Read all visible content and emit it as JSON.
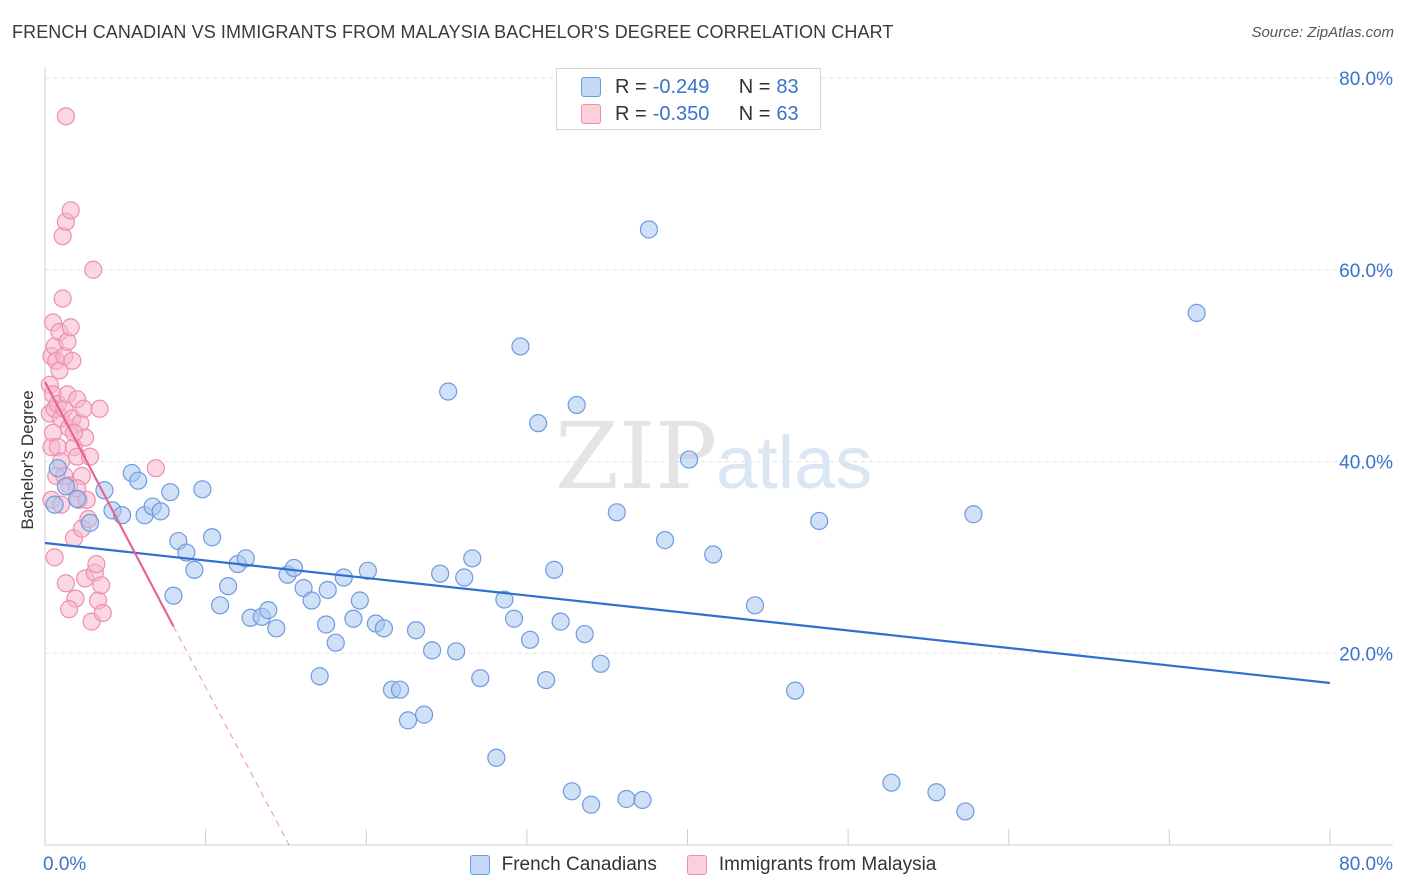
{
  "title": "FRENCH CANADIAN VS IMMIGRANTS FROM MALAYSIA BACHELOR'S DEGREE CORRELATION CHART",
  "source": "Source: ZipAtlas.com",
  "watermark": {
    "zip": "ZIP",
    "atlas": "atlas"
  },
  "legend_top": {
    "rows": [
      {
        "r_label": "R =",
        "r_value": "-0.249",
        "n_label": "N =",
        "n_value": "83"
      },
      {
        "r_label": "R =",
        "r_value": "-0.350",
        "n_label": "N =",
        "n_value": "63"
      }
    ]
  },
  "legend_bottom": {
    "items": [
      "French Canadians",
      "Immigrants from Malaysia"
    ]
  },
  "colors": {
    "blue_fill": "#a9c6f0",
    "blue_stroke": "#6d9be0",
    "blue_line": "#2f6fd0",
    "pink_fill": "#f6b7cb",
    "pink_stroke": "#ee8fae",
    "pink_line": "#e8638f",
    "tick_label": "#3a73c8",
    "grid": "#e3e3e3"
  },
  "chart_data": {
    "type": "scatter",
    "title": "FRENCH CANADIAN VS IMMIGRANTS FROM MALAYSIA BACHELOR'S DEGREE CORRELATION CHART",
    "xlabel": "",
    "ylabel": "Bachelor's Degree",
    "xlim": [
      0,
      80
    ],
    "ylim": [
      0,
      80
    ],
    "x_tick_labels": [
      "0.0%",
      "80.0%"
    ],
    "y_ticks": [
      20,
      40,
      60,
      80
    ],
    "y_tick_labels": [
      "20.0%",
      "40.0%",
      "60.0%",
      "80.0%"
    ],
    "grid": true,
    "legend_position": "top-center",
    "series": [
      {
        "name": "French Canadians",
        "r": -0.249,
        "n": 83,
        "trend": {
          "x": [
            0,
            80
          ],
          "y": [
            31.5,
            16.9
          ]
        },
        "points": [
          [
            0.6,
            35.5
          ],
          [
            0.8,
            39.3
          ],
          [
            1.3,
            37.4
          ],
          [
            2.0,
            36.1
          ],
          [
            2.8,
            33.6
          ],
          [
            3.7,
            37.0
          ],
          [
            4.2,
            34.9
          ],
          [
            4.8,
            34.4
          ],
          [
            5.4,
            38.8
          ],
          [
            5.8,
            38.0
          ],
          [
            6.2,
            34.4
          ],
          [
            6.7,
            35.3
          ],
          [
            7.2,
            34.8
          ],
          [
            7.8,
            36.8
          ],
          [
            8.3,
            31.7
          ],
          [
            8.8,
            30.5
          ],
          [
            9.3,
            28.7
          ],
          [
            9.8,
            37.1
          ],
          [
            10.4,
            32.1
          ],
          [
            10.9,
            25.0
          ],
          [
            11.4,
            27.0
          ],
          [
            12.0,
            29.3
          ],
          [
            12.5,
            29.9
          ],
          [
            12.8,
            23.7
          ],
          [
            13.5,
            23.8
          ],
          [
            13.9,
            24.5
          ],
          [
            14.4,
            22.6
          ],
          [
            15.1,
            28.2
          ],
          [
            15.5,
            28.9
          ],
          [
            16.1,
            26.8
          ],
          [
            16.6,
            25.5
          ],
          [
            17.1,
            17.6
          ],
          [
            17.6,
            26.6
          ],
          [
            18.1,
            21.1
          ],
          [
            18.6,
            27.9
          ],
          [
            19.2,
            23.6
          ],
          [
            19.6,
            25.5
          ],
          [
            20.1,
            28.6
          ],
          [
            20.6,
            23.1
          ],
          [
            21.1,
            22.6
          ],
          [
            21.6,
            16.2
          ],
          [
            22.1,
            16.2
          ],
          [
            22.6,
            13.0
          ],
          [
            23.1,
            22.4
          ],
          [
            23.6,
            13.6
          ],
          [
            24.1,
            20.3
          ],
          [
            24.6,
            28.3
          ],
          [
            25.1,
            47.3
          ],
          [
            25.6,
            20.2
          ],
          [
            26.1,
            27.9
          ],
          [
            26.6,
            29.9
          ],
          [
            27.1,
            17.4
          ],
          [
            28.1,
            9.1
          ],
          [
            28.6,
            25.6
          ],
          [
            29.2,
            23.6
          ],
          [
            29.6,
            52.0
          ],
          [
            30.2,
            21.4
          ],
          [
            30.7,
            44.0
          ],
          [
            31.2,
            17.2
          ],
          [
            31.7,
            28.7
          ],
          [
            32.1,
            23.3
          ],
          [
            32.8,
            5.6
          ],
          [
            33.1,
            45.9
          ],
          [
            33.6,
            22.0
          ],
          [
            34.0,
            4.2
          ],
          [
            34.6,
            18.9
          ],
          [
            35.6,
            34.7
          ],
          [
            36.2,
            4.8
          ],
          [
            37.2,
            4.7
          ],
          [
            37.6,
            64.2
          ],
          [
            38.6,
            31.8
          ],
          [
            40.1,
            40.2
          ],
          [
            41.6,
            30.3
          ],
          [
            44.2,
            25.0
          ],
          [
            46.7,
            16.1
          ],
          [
            48.2,
            33.8
          ],
          [
            52.7,
            6.5
          ],
          [
            55.5,
            5.5
          ],
          [
            57.3,
            3.5
          ],
          [
            57.8,
            34.5
          ],
          [
            71.7,
            55.5
          ],
          [
            8.0,
            26.0
          ],
          [
            17.5,
            23.0
          ]
        ]
      },
      {
        "name": "Immigrants from Malaysia",
        "r": -0.35,
        "n": 63,
        "trend": {
          "x": [
            0,
            8.0
          ],
          "y": [
            48.3,
            22.8
          ]
        },
        "trend_extension": {
          "x": [
            8.0,
            15.2
          ],
          "y": [
            22.8,
            0
          ]
        },
        "points": [
          [
            0.3,
            45.0
          ],
          [
            0.3,
            48.0
          ],
          [
            0.4,
            51.0
          ],
          [
            0.4,
            41.5
          ],
          [
            0.4,
            36.0
          ],
          [
            0.5,
            54.5
          ],
          [
            0.5,
            47.0
          ],
          [
            0.5,
            43.0
          ],
          [
            0.6,
            52.0
          ],
          [
            0.6,
            45.5
          ],
          [
            0.7,
            50.5
          ],
          [
            0.7,
            38.5
          ],
          [
            0.8,
            46.0
          ],
          [
            0.8,
            41.5
          ],
          [
            0.9,
            53.5
          ],
          [
            0.9,
            49.5
          ],
          [
            1.0,
            44.5
          ],
          [
            1.0,
            40.0
          ],
          [
            1.0,
            35.5
          ],
          [
            1.1,
            63.5
          ],
          [
            1.1,
            57.0
          ],
          [
            1.2,
            51.0
          ],
          [
            1.2,
            45.5
          ],
          [
            1.2,
            38.5
          ],
          [
            1.3,
            76.0
          ],
          [
            1.3,
            65.0
          ],
          [
            1.3,
            27.3
          ],
          [
            1.4,
            52.5
          ],
          [
            1.4,
            47.0
          ],
          [
            1.5,
            43.5
          ],
          [
            1.5,
            37.5
          ],
          [
            1.6,
            66.2
          ],
          [
            1.6,
            54.0
          ],
          [
            1.7,
            50.5
          ],
          [
            1.7,
            44.5
          ],
          [
            1.8,
            41.5
          ],
          [
            1.8,
            32.0
          ],
          [
            1.9,
            25.7
          ],
          [
            2.0,
            46.5
          ],
          [
            2.0,
            40.5
          ],
          [
            2.1,
            36.0
          ],
          [
            2.2,
            44.0
          ],
          [
            2.3,
            38.5
          ],
          [
            2.3,
            33.0
          ],
          [
            2.4,
            45.5
          ],
          [
            2.5,
            42.5
          ],
          [
            2.5,
            27.8
          ],
          [
            2.6,
            36.0
          ],
          [
            2.7,
            34.0
          ],
          [
            2.8,
            40.5
          ],
          [
            2.9,
            23.3
          ],
          [
            3.0,
            60.0
          ],
          [
            3.1,
            28.4
          ],
          [
            3.2,
            29.3
          ],
          [
            3.3,
            25.5
          ],
          [
            3.4,
            45.5
          ],
          [
            3.5,
            27.1
          ],
          [
            3.6,
            24.2
          ],
          [
            6.9,
            39.3
          ],
          [
            1.5,
            24.6
          ],
          [
            2.0,
            37.2
          ],
          [
            0.6,
            30.0
          ],
          [
            1.8,
            43.0
          ]
        ]
      }
    ]
  }
}
